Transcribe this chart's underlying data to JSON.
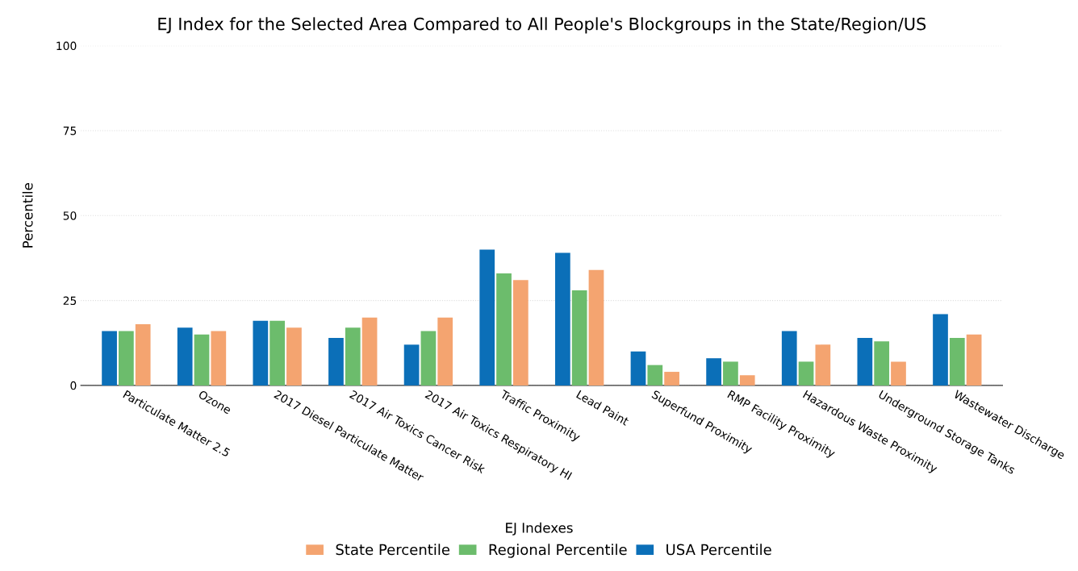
{
  "chart_data": {
    "type": "bar",
    "title": "EJ Index for the Selected Area Compared to All People's Blockgroups in the State/Region/US",
    "xlabel": "EJ Indexes",
    "ylabel": "Percentile",
    "categories": [
      "Particulate Matter 2.5",
      "Ozone",
      "2017 Diesel Particulate Matter",
      "2017 Air Toxics Cancer Risk",
      "2017 Air Toxics Respiratory HI",
      "Traffic Proximity",
      "Lead Paint",
      "Superfund Proximity",
      "RMP Facility Proximity",
      "Hazardous Waste Proximity",
      "Underground Storage Tanks",
      "Wastewater Discharge"
    ],
    "series": [
      {
        "name": "USA Percentile",
        "color": "#0b6fb8",
        "values": [
          16,
          17,
          19,
          14,
          12,
          40,
          39,
          10,
          8,
          16,
          14,
          21
        ]
      },
      {
        "name": "Regional Percentile",
        "color": "#6cbc6c",
        "values": [
          16,
          15,
          19,
          17,
          16,
          33,
          28,
          6,
          7,
          7,
          13,
          14
        ]
      },
      {
        "name": "State Percentile",
        "color": "#f4a470",
        "values": [
          18,
          16,
          17,
          20,
          20,
          31,
          34,
          4,
          3,
          12,
          7,
          15
        ]
      }
    ],
    "ylim": [
      0,
      100
    ],
    "yticks": [
      0,
      25,
      50,
      75,
      100
    ],
    "grid": "y",
    "legend": "bottom"
  }
}
